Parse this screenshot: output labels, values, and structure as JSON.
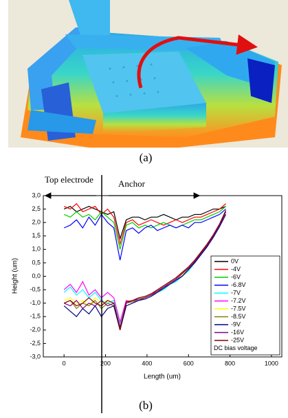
{
  "caption_a": "(a)",
  "caption_b": "(b)",
  "chart_data": {
    "type": "line",
    "xlabel": "Length (um)",
    "ylabel": "Height (um)",
    "annotations": [
      "Top electrode",
      "Anchor"
    ],
    "legend_title": "DC bias voltage",
    "legend": "lower right",
    "xlim": [
      -100,
      1050
    ],
    "xticks": [
      0,
      200,
      400,
      600,
      800,
      1000
    ],
    "ylim": [
      -3,
      3
    ],
    "yticks": [
      {
        "value": 3,
        "label": "3,0"
      },
      {
        "value": 2.5,
        "label": "2,5"
      },
      {
        "value": 2,
        "label": "2,0"
      },
      {
        "value": 1.5,
        "label": "1,5"
      },
      {
        "value": 1,
        "label": "1,0"
      },
      {
        "value": 0.5,
        "label": "0,5"
      },
      {
        "value": 0,
        "label": "0,0"
      },
      {
        "value": -0.5,
        "label": "-0,5"
      },
      {
        "value": -1,
        "label": "-1,0"
      },
      {
        "value": -1.5,
        "label": "-1,5"
      },
      {
        "value": -2,
        "label": "-2,0"
      },
      {
        "value": -2.5,
        "label": "-2,5"
      },
      {
        "value": -3,
        "label": "-3,0"
      }
    ],
    "x": [
      0,
      30,
      60,
      90,
      120,
      150,
      180,
      210,
      240,
      270,
      300,
      330,
      360,
      390,
      420,
      450,
      480,
      510,
      540,
      570,
      600,
      630,
      660,
      690,
      720,
      750,
      780
    ],
    "series": [
      {
        "name": "0V",
        "color": "#000000",
        "values": [
          2.5,
          2.6,
          2.4,
          2.5,
          2.6,
          2.5,
          2.4,
          2.3,
          2.4,
          1.4,
          2.1,
          2.2,
          2.2,
          2.1,
          2.2,
          2.2,
          2.3,
          2.2,
          2.1,
          2.2,
          2.2,
          2.3,
          2.3,
          2.4,
          2.5,
          2.5,
          2.6
        ]
      },
      {
        "name": "-4V",
        "color": "#ff0000",
        "values": [
          2.6,
          2.5,
          2.7,
          2.4,
          2.5,
          2.6,
          2.3,
          2.5,
          2.2,
          1.2,
          2.0,
          2.1,
          1.9,
          2.0,
          2.1,
          2.0,
          1.9,
          2.0,
          2.1,
          2.0,
          2.1,
          2.2,
          2.2,
          2.3,
          2.4,
          2.5,
          2.7
        ]
      },
      {
        "name": "-6V",
        "color": "#00cc00",
        "values": [
          2.3,
          2.2,
          2.4,
          2.2,
          2.3,
          2.1,
          2.4,
          2.2,
          2.0,
          1.0,
          1.9,
          2.0,
          1.8,
          1.9,
          1.8,
          1.9,
          2.0,
          1.9,
          1.8,
          1.9,
          2.0,
          2.1,
          2.1,
          2.2,
          2.3,
          2.4,
          2.6
        ]
      },
      {
        "name": "-6.8V",
        "color": "#0000ff",
        "values": [
          1.8,
          1.9,
          2.1,
          1.8,
          2.2,
          1.9,
          2.3,
          2.0,
          1.8,
          0.6,
          1.7,
          1.8,
          1.6,
          1.8,
          1.9,
          1.7,
          1.8,
          1.9,
          1.8,
          1.9,
          1.8,
          2.0,
          2.0,
          2.1,
          2.2,
          2.3,
          2.5
        ]
      },
      {
        "name": "-7V",
        "color": "#00ffff",
        "values": [
          -0.6,
          -0.4,
          -0.7,
          -0.5,
          -0.8,
          -0.6,
          -0.9,
          -1.0,
          -0.9,
          -1.8,
          -1.0,
          -0.9,
          -0.8,
          -0.8,
          -0.7,
          -0.6,
          -0.5,
          -0.3,
          -0.2,
          0.0,
          0.2,
          0.5,
          0.8,
          1.1,
          1.5,
          1.9,
          2.4
        ]
      },
      {
        "name": "-7.2V",
        "color": "#ff00ff",
        "values": [
          -0.5,
          -0.3,
          -0.6,
          -0.2,
          -0.7,
          -0.5,
          -0.8,
          -0.6,
          -0.8,
          -1.7,
          -0.9,
          -0.95,
          -0.85,
          -0.8,
          -0.65,
          -0.55,
          -0.4,
          -0.3,
          -0.15,
          0.05,
          0.25,
          0.55,
          0.85,
          1.15,
          1.5,
          1.9,
          2.4
        ]
      },
      {
        "name": "-7.5V",
        "color": "#ffff00",
        "values": [
          -0.9,
          -0.8,
          -1.0,
          -0.9,
          -1.1,
          -0.8,
          -1.0,
          -0.9,
          -1.0,
          -1.9,
          -1.0,
          -0.9,
          -0.85,
          -0.75,
          -0.7,
          -0.55,
          -0.45,
          -0.3,
          -0.1,
          0.05,
          0.3,
          0.6,
          0.85,
          1.2,
          1.5,
          1.9,
          2.3
        ]
      },
      {
        "name": "-8.5V",
        "color": "#808000",
        "values": [
          -1.0,
          -0.9,
          -1.2,
          -1.0,
          -1.1,
          -0.9,
          -1.2,
          -1.0,
          -1.1,
          -2.0,
          -1.0,
          -0.95,
          -0.9,
          -0.8,
          -0.7,
          -0.6,
          -0.4,
          -0.25,
          -0.1,
          0.1,
          0.3,
          0.5,
          0.8,
          1.1,
          1.5,
          1.9,
          2.4
        ]
      },
      {
        "name": "-9V",
        "color": "#000080",
        "values": [
          -1.1,
          -1.3,
          -1.5,
          -1.2,
          -1.4,
          -1.1,
          -1.5,
          -1.2,
          -1.1,
          -2.0,
          -1.1,
          -1.0,
          -0.9,
          -0.85,
          -0.75,
          -0.6,
          -0.45,
          -0.3,
          -0.15,
          0.0,
          0.25,
          0.5,
          0.8,
          1.1,
          1.45,
          1.85,
          2.3
        ]
      },
      {
        "name": "-16V",
        "color": "#800080",
        "values": [
          -1.0,
          -1.1,
          -0.9,
          -1.2,
          -1.0,
          -1.1,
          -0.9,
          -1.1,
          -1.0,
          -1.9,
          -1.0,
          -0.9,
          -0.85,
          -0.8,
          -0.7,
          -0.55,
          -0.4,
          -0.25,
          -0.1,
          0.1,
          0.3,
          0.55,
          0.85,
          1.15,
          1.5,
          1.9,
          2.4
        ]
      },
      {
        "name": "-25V",
        "color": "#800000",
        "values": [
          -1.0,
          -0.9,
          -1.1,
          -1.0,
          -0.8,
          -1.0,
          -1.1,
          -0.9,
          -1.0,
          -2.0,
          -0.95,
          -0.9,
          -0.8,
          -0.75,
          -0.65,
          -0.5,
          -0.35,
          -0.2,
          -0.05,
          0.15,
          0.35,
          0.6,
          0.9,
          1.2,
          1.55,
          1.95,
          2.45
        ]
      }
    ]
  }
}
